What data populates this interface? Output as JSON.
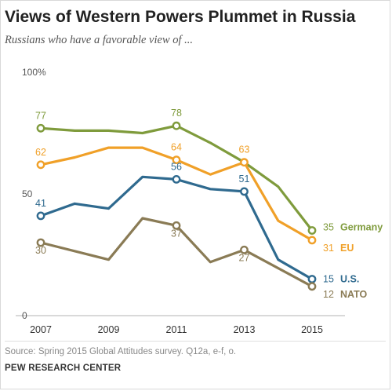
{
  "title": "Views of Western Powers Plummet in Russia",
  "subtitle": "Russians who have a favorable view of ...",
  "source": "Source: Spring 2015 Global Attitudes survey. Q12a, e-f, o.",
  "org": "PEW RESEARCH CENTER",
  "chart_data": {
    "type": "line",
    "x_ticks": [
      "2007",
      "2009",
      "2011",
      "2013",
      "2015"
    ],
    "x_range": [
      2007,
      2015
    ],
    "y_ticks": [
      {
        "value": 100,
        "label": "100%"
      },
      {
        "value": 50,
        "label": "50"
      },
      {
        "value": 0,
        "label": "0"
      }
    ],
    "ylim": [
      0,
      100
    ],
    "series": [
      {
        "name": "Germany",
        "color": "#7f9b3c",
        "points": [
          {
            "x": 2007,
            "y": 77,
            "label": "77"
          },
          {
            "x": 2008,
            "y": 76
          },
          {
            "x": 2009,
            "y": 76
          },
          {
            "x": 2010,
            "y": 75
          },
          {
            "x": 2011,
            "y": 78,
            "label": "78"
          },
          {
            "x": 2012,
            "y": 71
          },
          {
            "x": 2013,
            "y": 63
          },
          {
            "x": 2014,
            "y": 53
          },
          {
            "x": 2015,
            "y": 35,
            "label": "35"
          }
        ]
      },
      {
        "name": "EU",
        "color": "#f0a028",
        "points": [
          {
            "x": 2007,
            "y": 62,
            "label": "62"
          },
          {
            "x": 2008,
            "y": 65
          },
          {
            "x": 2009,
            "y": 69
          },
          {
            "x": 2010,
            "y": 69
          },
          {
            "x": 2011,
            "y": 64,
            "label": "64"
          },
          {
            "x": 2012,
            "y": 58
          },
          {
            "x": 2013,
            "y": 63,
            "label": "63"
          },
          {
            "x": 2014,
            "y": 39
          },
          {
            "x": 2015,
            "y": 31,
            "label": "31"
          }
        ]
      },
      {
        "name": "U.S.",
        "color": "#2f6a8f",
        "points": [
          {
            "x": 2007,
            "y": 41,
            "label": "41"
          },
          {
            "x": 2008,
            "y": 46
          },
          {
            "x": 2009,
            "y": 44
          },
          {
            "x": 2010,
            "y": 57
          },
          {
            "x": 2011,
            "y": 56,
            "label": "56"
          },
          {
            "x": 2012,
            "y": 52
          },
          {
            "x": 2013,
            "y": 51,
            "label": "51"
          },
          {
            "x": 2014,
            "y": 23
          },
          {
            "x": 2015,
            "y": 15,
            "label": "15"
          }
        ]
      },
      {
        "name": "NATO",
        "color": "#8a7b55",
        "points": [
          {
            "x": 2007,
            "y": 30,
            "label": "30"
          },
          {
            "x": 2009,
            "y": 23
          },
          {
            "x": 2010,
            "y": 40
          },
          {
            "x": 2011,
            "y": 37,
            "label": "37"
          },
          {
            "x": 2012,
            "y": 22
          },
          {
            "x": 2013,
            "y": 27,
            "label": "27"
          },
          {
            "x": 2015,
            "y": 12,
            "label": "12"
          }
        ]
      }
    ]
  }
}
